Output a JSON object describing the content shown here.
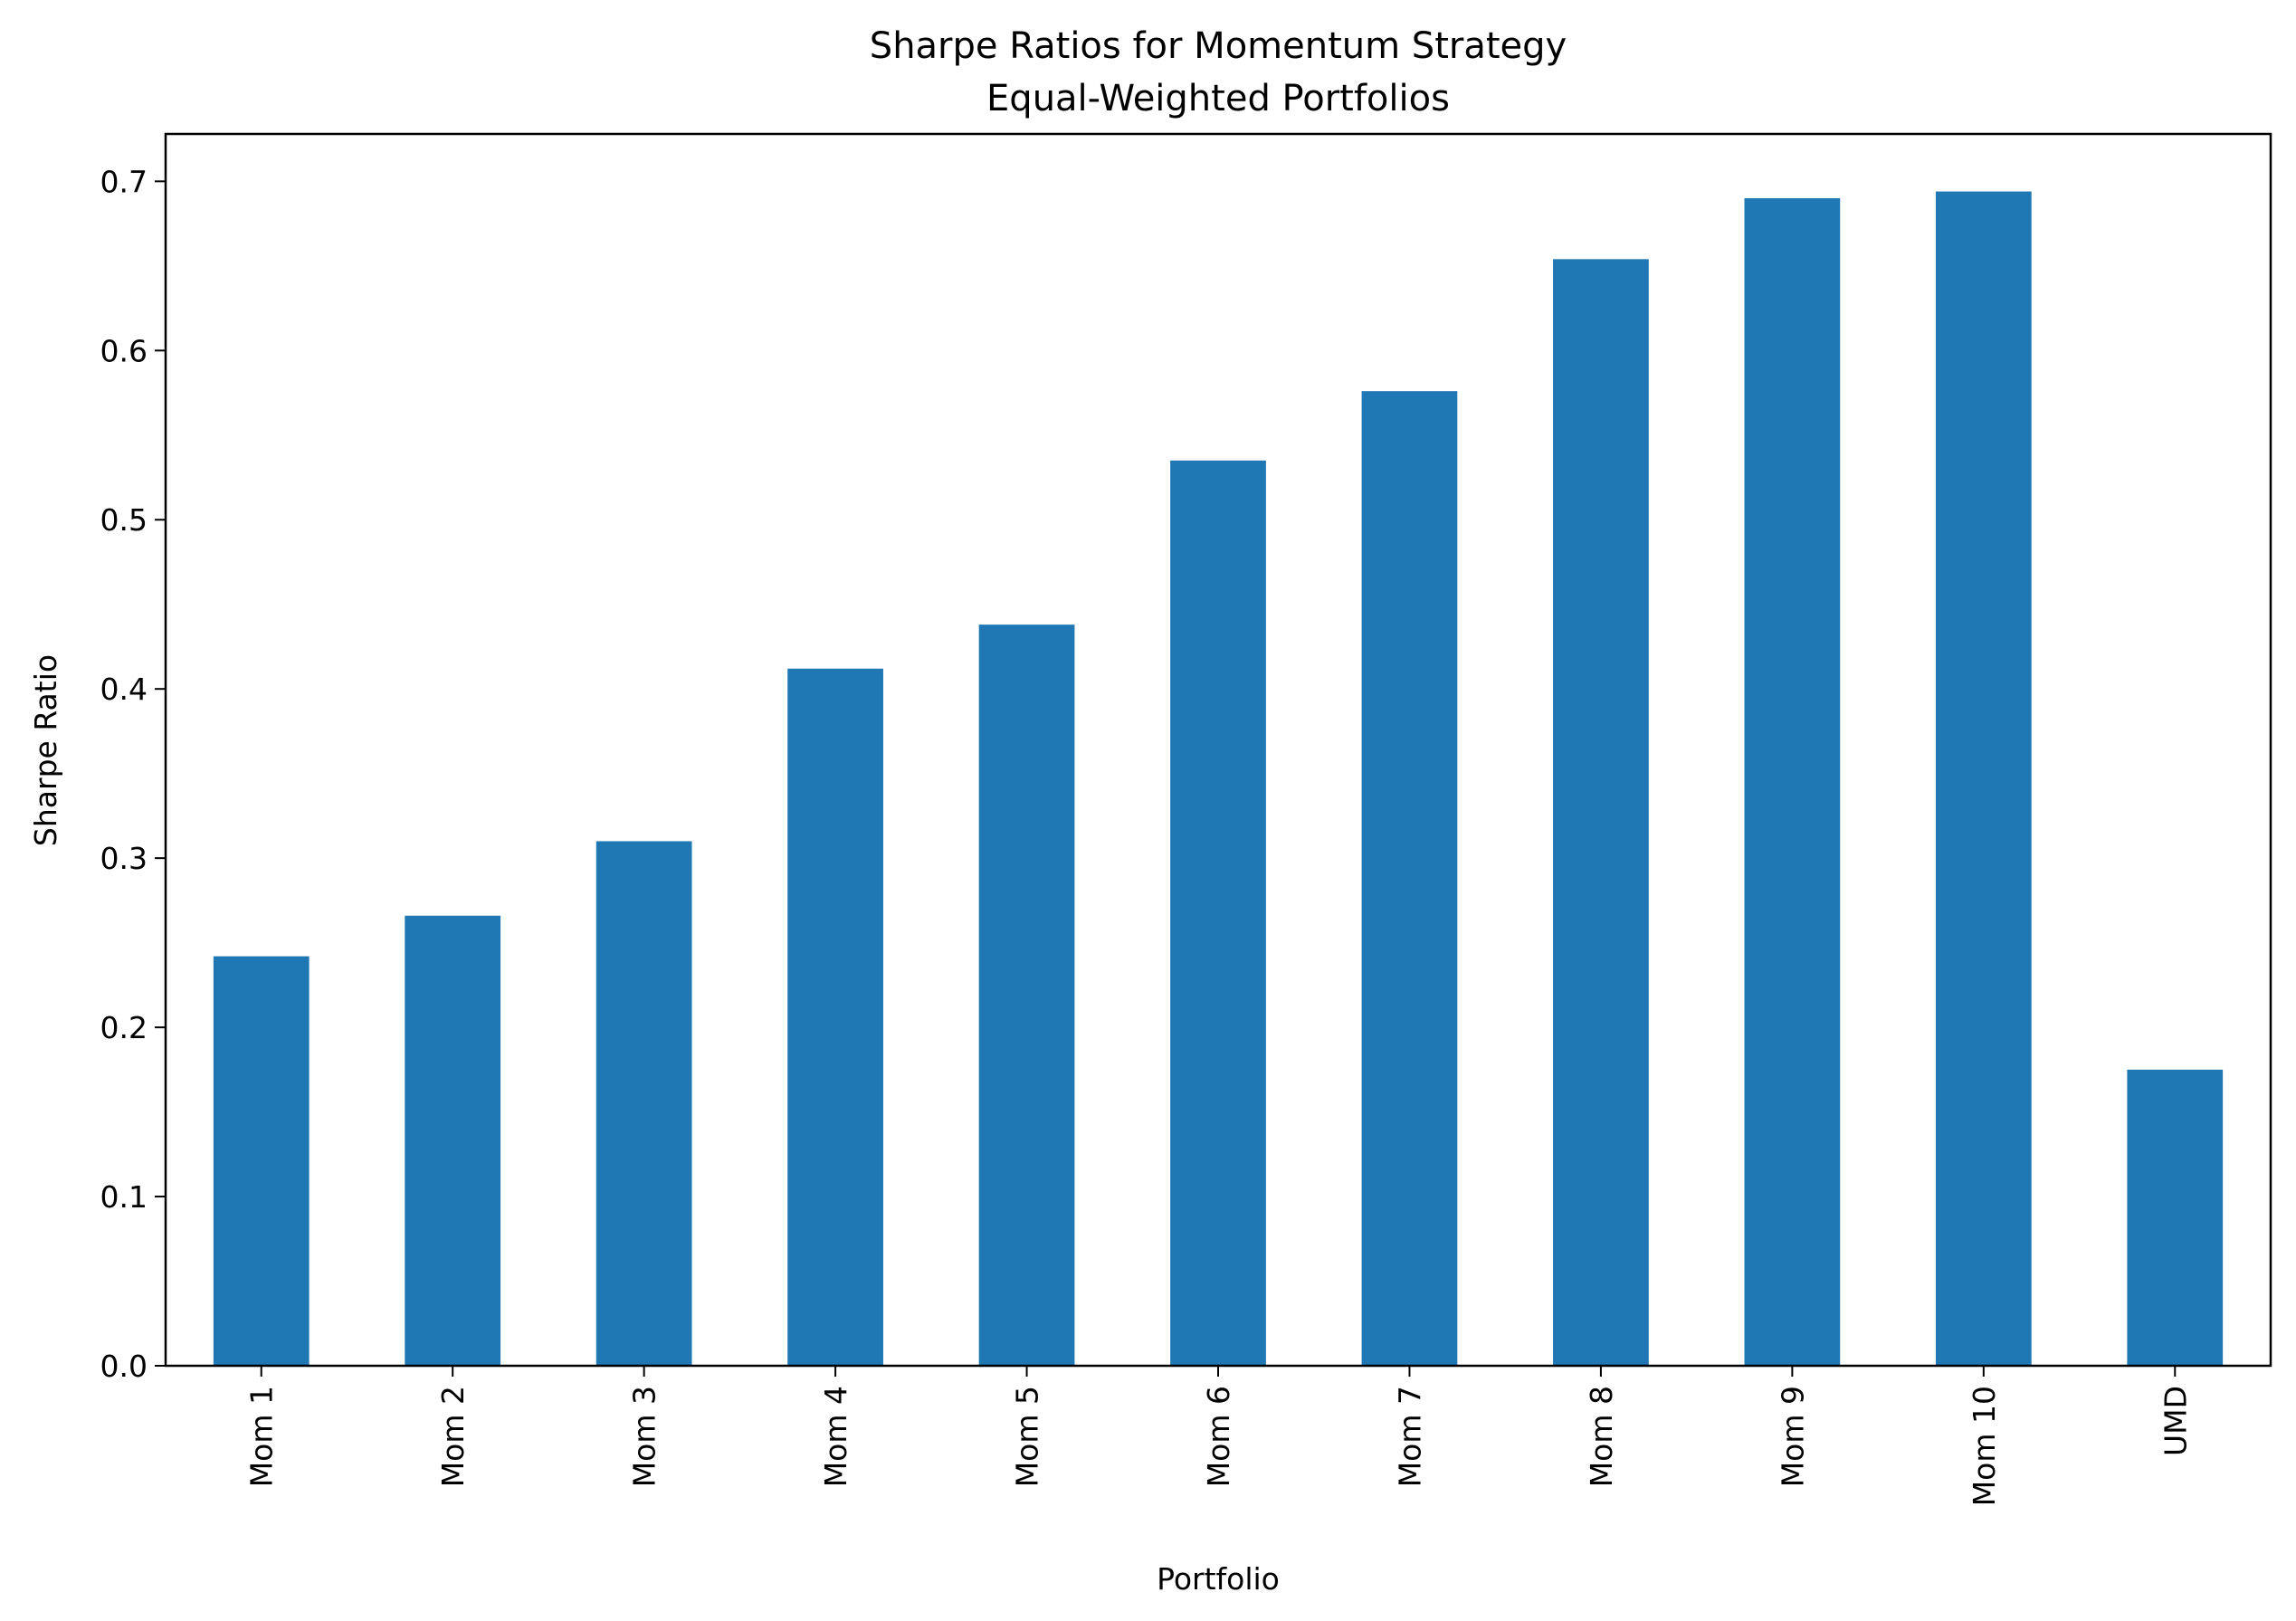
{
  "chart_data": {
    "type": "bar",
    "title": "Sharpe Ratios for Momentum Strategy",
    "subtitle": "Equal-Weighted Portfolios",
    "xlabel": "Portfolio",
    "ylabel": "Sharpe Ratio",
    "categories": [
      "Mom 1",
      "Mom 2",
      "Mom 3",
      "Mom 4",
      "Mom 5",
      "Mom 6",
      "Mom 7",
      "Mom 8",
      "Mom 9",
      "Mom 10",
      "UMD"
    ],
    "values": [
      0.242,
      0.266,
      0.31,
      0.412,
      0.438,
      0.535,
      0.576,
      0.654,
      0.69,
      0.694,
      0.175
    ],
    "ylim": [
      0,
      0.728
    ],
    "yticks": [
      0.0,
      0.1,
      0.2,
      0.3,
      0.4,
      0.5,
      0.6,
      0.7
    ],
    "ytick_labels": [
      "0.0",
      "0.1",
      "0.2",
      "0.3",
      "0.4",
      "0.5",
      "0.6",
      "0.7"
    ],
    "grid": false,
    "legend": "none",
    "colors": {
      "bar": "#1f77b4",
      "axis": "#000000",
      "background": "#ffffff"
    }
  }
}
